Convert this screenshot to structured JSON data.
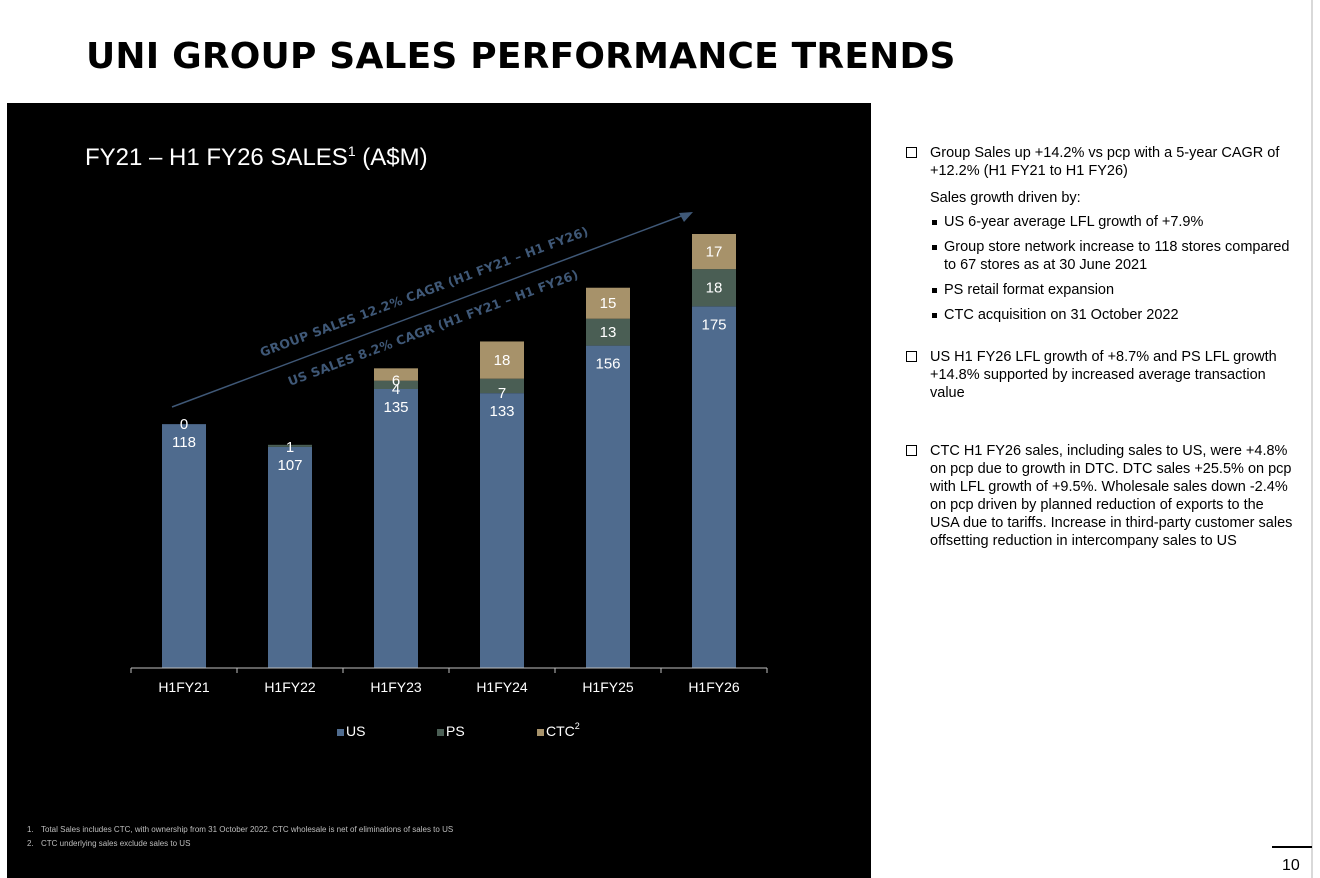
{
  "slide": {
    "title": "UNI GROUP SALES PERFORMANCE TRENDS",
    "page_number": "10"
  },
  "chart_panel": {
    "title_main": "FY21 – H1 FY26 SALES",
    "title_sup": "1",
    "title_unit": " (A$M)",
    "annotations": {
      "group_cagr": "GROUP SALES 12.2% CAGR (H1 FY21 – H1 FY26)",
      "us_cagr": "US SALES 8.2% CAGR (H1 FY21 – H1 FY26)"
    },
    "footnotes": [
      {
        "num": "1.",
        "text": "Total Sales includes CTC, with ownership from 31 October 2022. CTC wholesale is net of eliminations of sales to US"
      },
      {
        "num": "2.",
        "text": "CTC underlying sales exclude sales to US"
      }
    ]
  },
  "chart_data": {
    "type": "bar",
    "stacked": true,
    "title": "FY21 – H1 FY26 SALES1 (A$M)",
    "categories": [
      "H1FY21",
      "H1FY22",
      "H1FY23",
      "H1FY24",
      "H1FY25",
      "H1FY26"
    ],
    "series": [
      {
        "name": "US",
        "values": [
          118,
          107,
          135,
          133,
          156,
          175
        ],
        "color": "#4f6b8e"
      },
      {
        "name": "PS",
        "values": [
          0,
          1,
          4,
          7,
          13,
          18
        ],
        "color": "#4a5e54"
      },
      {
        "name": "CTC",
        "values": [
          0,
          0,
          6,
          18,
          15,
          17
        ],
        "color": "#a7926a"
      }
    ],
    "legend": [
      "US",
      "PS",
      "CTC"
    ],
    "legend_ctc_sup": "2",
    "legend_position": "bottom",
    "xlabel": "",
    "ylabel": "",
    "ylim": [
      0,
      225
    ],
    "grid": false
  },
  "commentary": {
    "point1": "Group Sales up +14.2% vs pcp with a 5-year CAGR of +12.2% (H1 FY21 to H1 FY26)",
    "sub_intro": "Sales growth driven by:",
    "sub_points": [
      "US 6-year average LFL growth of +7.9%",
      "Group store network increase to 118 stores compared to 67 stores as at 30 June 2021",
      "PS retail format expansion",
      "CTC acquisition on 31 October 2022"
    ],
    "point2": "US H1 FY26 LFL growth of +8.7% and PS LFL growth +14.8% supported by increased average transaction value",
    "point3": "CTC H1 FY26 sales, including sales to US, were +4.8% on pcp due to growth in DTC.  DTC sales +25.5% on pcp with LFL growth of +9.5%. Wholesale sales down -2.4% on pcp driven by planned reduction of exports to the USA due to tariffs. Increase in third-party customer sales offsetting reduction in intercompany sales to US"
  },
  "colors": {
    "panel_bg": "#000000",
    "axis": "#bfbfbf",
    "arrow": "#3f5877"
  }
}
